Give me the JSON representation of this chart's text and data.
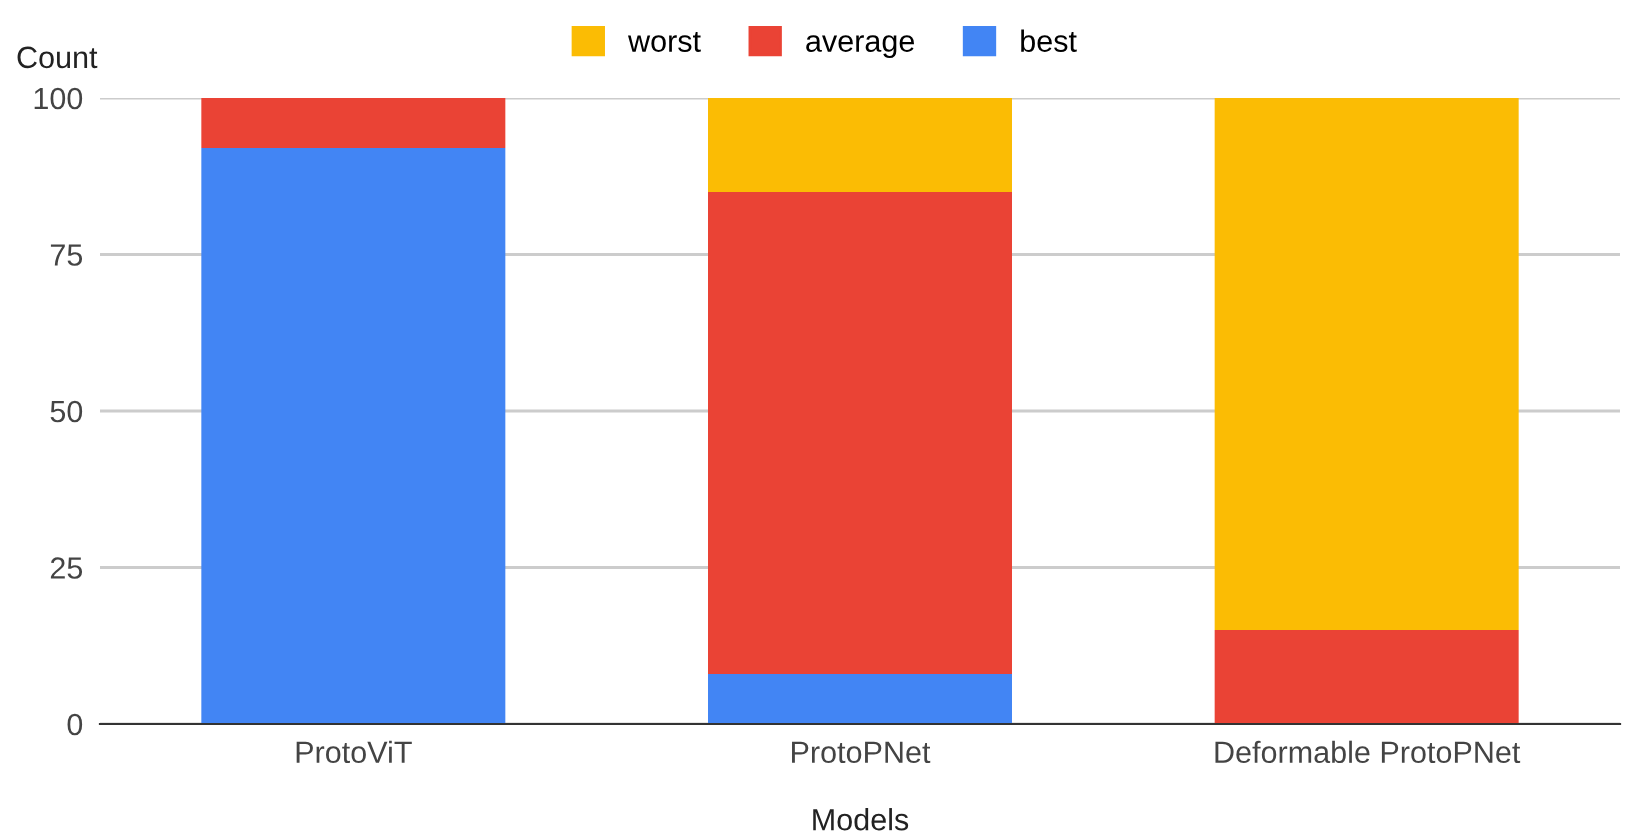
{
  "chart_data": {
    "type": "bar",
    "stacked": true,
    "xlabel": "Models",
    "ylabel": "Count",
    "categories": [
      "ProtoViT",
      "ProtoPNet",
      "Deformable ProtoPNet"
    ],
    "series": [
      {
        "name": "best",
        "color": "#4285f4",
        "values": [
          92,
          8,
          0
        ]
      },
      {
        "name": "average",
        "color": "#ea4335",
        "values": [
          8,
          77,
          15
        ]
      },
      {
        "name": "worst",
        "color": "#fbbc04",
        "values": [
          0,
          15,
          85
        ]
      }
    ],
    "ylim": [
      0,
      100
    ],
    "yticks": [
      0,
      25,
      50,
      75,
      100
    ],
    "grid": "y",
    "legend": "top"
  }
}
